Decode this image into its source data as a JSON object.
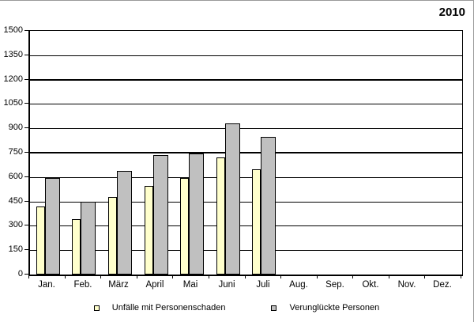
{
  "title": "2010",
  "chart_data": {
    "type": "bar",
    "title": "2010",
    "categories": [
      "Jan.",
      "Feb.",
      "März",
      "April",
      "Mai",
      "Juni",
      "Juli",
      "Aug.",
      "Sep.",
      "Okt.",
      "Nov.",
      "Dez."
    ],
    "series": [
      {
        "name": "Unfälle mit Personenschaden",
        "color": "#FFFFCC",
        "values": [
          420,
          340,
          475,
          545,
          595,
          720,
          650,
          null,
          null,
          null,
          null,
          null
        ]
      },
      {
        "name": "Verunglückte Personen",
        "color": "#C0C0C0",
        "values": [
          595,
          450,
          640,
          735,
          745,
          930,
          845,
          null,
          null,
          null,
          null,
          null
        ]
      }
    ],
    "xlabel": "",
    "ylabel": "",
    "ylim": [
      0,
      1500
    ],
    "ytick_interval": 150,
    "yticks": [
      0,
      150,
      300,
      450,
      600,
      750,
      900,
      1050,
      1200,
      1350,
      1500
    ],
    "emphasized_gridlines": [
      750,
      1200
    ],
    "grid": true,
    "legend_position": "bottom"
  }
}
